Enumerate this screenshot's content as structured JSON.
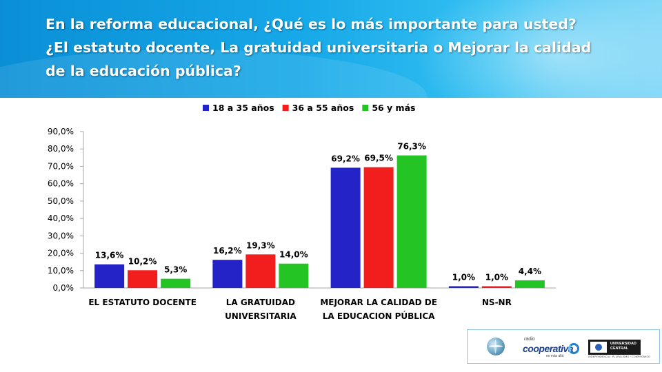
{
  "header": {
    "title_lines": [
      "En la reforma educacional, ¿Qué es lo más importante para usted?",
      "¿El estatuto docente, La gratuidad universitaria o Mejorar la calidad",
      "de la educación pública?"
    ]
  },
  "chart_data": {
    "type": "bar",
    "categories": [
      [
        "EL ESTATUTO DOCENTE"
      ],
      [
        "LA GRATUIDAD",
        "UNIVERSITARIA"
      ],
      [
        "MEJORAR LA CALIDAD DE",
        "LA EDUCACION PÚBLICA"
      ],
      [
        "NS-NR"
      ]
    ],
    "series": [
      {
        "name": "18 a 35 años",
        "color": "#2323c8",
        "values": [
          13.6,
          16.2,
          69.2,
          1.0
        ],
        "labels": [
          "13,6%",
          "16,2%",
          "69,2%",
          "1,0%"
        ]
      },
      {
        "name": "36 a 55 años",
        "color": "#f21d1d",
        "values": [
          10.2,
          19.3,
          69.5,
          1.0
        ],
        "labels": [
          "10,2%",
          "19,3%",
          "69,5%",
          "1,0%"
        ]
      },
      {
        "name": "56 y más",
        "color": "#25c425",
        "values": [
          5.3,
          14.0,
          76.3,
          4.4
        ],
        "labels": [
          "5,3%",
          "14,0%",
          "76,3%",
          "4,4%"
        ]
      }
    ],
    "y_ticks": [
      {
        "value": 0,
        "label": "0,0%"
      },
      {
        "value": 10,
        "label": "10,0%"
      },
      {
        "value": 20,
        "label": "20,0%"
      },
      {
        "value": 30,
        "label": "30,0%"
      },
      {
        "value": 40,
        "label": "40,0%"
      },
      {
        "value": 50,
        "label": "50,0%"
      },
      {
        "value": 60,
        "label": "60,0%"
      },
      {
        "value": 70,
        "label": "70,0%"
      },
      {
        "value": 80,
        "label": "80,0%"
      },
      {
        "value": 90,
        "label": "90,0%"
      }
    ],
    "ylim": [
      0,
      90
    ],
    "grid": false,
    "legend_position": "top"
  },
  "logos": {
    "cooperativa_small": "radio",
    "cooperativa_name": "cooperativa",
    "cooperativa_tagline": "es más allá",
    "university_name_lines": [
      "UNIVERSIDAD",
      "CENTRAL"
    ],
    "university_tagline": "INDEPENDENCIA · PLURALISMO · COMPROMISO"
  }
}
